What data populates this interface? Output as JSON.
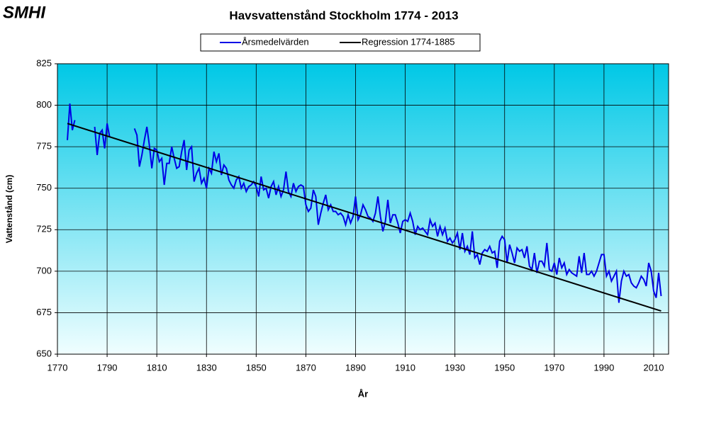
{
  "logo": "SMHI",
  "chart_data": {
    "type": "line",
    "title": "Havsvattenstånd  Stockholm 1774 - 2013",
    "x_label": "År",
    "y_label": "Vattenstånd (cm)",
    "xlim": [
      1770,
      2016
    ],
    "xticks": [
      1770,
      1790,
      1810,
      1830,
      1850,
      1870,
      1890,
      1910,
      1930,
      1950,
      1970,
      1990,
      2010
    ],
    "ylim": [
      650,
      825
    ],
    "yticks": [
      650,
      675,
      700,
      725,
      750,
      775,
      800,
      825
    ],
    "grid": true,
    "legend": "top",
    "series": [
      {
        "name": "Årsmedelvärden",
        "color": "#0000e6",
        "x": [
          1774,
          1775,
          1776,
          1777,
          1778,
          1779,
          1780,
          1781,
          1782,
          1783,
          1784,
          1785,
          1786,
          1787,
          1788,
          1789,
          1790,
          1791,
          1792,
          1793,
          1794,
          1795,
          1796,
          1797,
          1798,
          1799,
          1800,
          1801,
          1802,
          1803,
          1804,
          1805,
          1806,
          1807,
          1808,
          1809,
          1810,
          1811,
          1812,
          1813,
          1814,
          1815,
          1816,
          1817,
          1818,
          1819,
          1820,
          1821,
          1822,
          1823,
          1824,
          1825,
          1826,
          1827,
          1828,
          1829,
          1830,
          1831,
          1832,
          1833,
          1834,
          1835,
          1836,
          1837,
          1838,
          1839,
          1840,
          1841,
          1842,
          1843,
          1844,
          1845,
          1846,
          1847,
          1848,
          1849,
          1850,
          1851,
          1852,
          1853,
          1854,
          1855,
          1856,
          1857,
          1858,
          1859,
          1860,
          1861,
          1862,
          1863,
          1864,
          1865,
          1866,
          1867,
          1868,
          1869,
          1870,
          1871,
          1872,
          1873,
          1874,
          1875,
          1876,
          1877,
          1878,
          1879,
          1880,
          1881,
          1882,
          1883,
          1884,
          1885,
          1886,
          1887,
          1888,
          1889,
          1890,
          1891,
          1892,
          1893,
          1894,
          1895,
          1896,
          1897,
          1898,
          1899,
          1900,
          1901,
          1902,
          1903,
          1904,
          1905,
          1906,
          1907,
          1908,
          1909,
          1910,
          1911,
          1912,
          1913,
          1914,
          1915,
          1916,
          1917,
          1918,
          1919,
          1920,
          1921,
          1922,
          1923,
          1924,
          1925,
          1926,
          1927,
          1928,
          1929,
          1930,
          1931,
          1932,
          1933,
          1934,
          1935,
          1936,
          1937,
          1938,
          1939,
          1940,
          1941,
          1942,
          1943,
          1944,
          1945,
          1946,
          1947,
          1948,
          1949,
          1950,
          1951,
          1952,
          1953,
          1954,
          1955,
          1956,
          1957,
          1958,
          1959,
          1960,
          1961,
          1962,
          1963,
          1964,
          1965,
          1966,
          1967,
          1968,
          1969,
          1970,
          1971,
          1972,
          1973,
          1974,
          1975,
          1976,
          1977,
          1978,
          1979,
          1980,
          1981,
          1982,
          1983,
          1984,
          1985,
          1986,
          1987,
          1988,
          1989,
          1990,
          1991,
          1992,
          1993,
          1994,
          1995,
          1996,
          1997,
          1998,
          1999,
          2000,
          2001,
          2002,
          2003,
          2004,
          2005,
          2006,
          2007,
          2008,
          2009,
          2010,
          2011,
          2012,
          2013
        ],
        "values": [
          779,
          801,
          785,
          791,
          null,
          null,
          null,
          null,
          null,
          null,
          null,
          787,
          770,
          783,
          785,
          774,
          789,
          781,
          null,
          null,
          null,
          null,
          null,
          null,
          null,
          null,
          null,
          786,
          782,
          763,
          770,
          779,
          787,
          776,
          762,
          774,
          773,
          766,
          768,
          752,
          765,
          765,
          775,
          768,
          762,
          763,
          772,
          779,
          761,
          773,
          775,
          754,
          759,
          762,
          753,
          756,
          750,
          762,
          759,
          772,
          766,
          771,
          758,
          764,
          762,
          755,
          752,
          750,
          755,
          757,
          750,
          753,
          748,
          751,
          752,
          754,
          751,
          745,
          757,
          749,
          750,
          744,
          751,
          754,
          746,
          751,
          745,
          749,
          760,
          748,
          745,
          753,
          748,
          751,
          752,
          751,
          740,
          736,
          738,
          749,
          745,
          728,
          735,
          741,
          746,
          737,
          740,
          736,
          736,
          734,
          735,
          733,
          728,
          734,
          729,
          733,
          745,
          731,
          734,
          740,
          737,
          733,
          732,
          730,
          735,
          745,
          733,
          724,
          730,
          743,
          729,
          734,
          734,
          729,
          723,
          730,
          731,
          730,
          735,
          730,
          722,
          727,
          725,
          726,
          724,
          722,
          731,
          727,
          729,
          721,
          727,
          722,
          726,
          718,
          720,
          717,
          719,
          723,
          713,
          723,
          712,
          715,
          710,
          724,
          708,
          710,
          704,
          711,
          713,
          712,
          715,
          711,
          712,
          702,
          718,
          721,
          719,
          705,
          716,
          711,
          705,
          714,
          712,
          713,
          708,
          715,
          703,
          701,
          711,
          699,
          706,
          706,
          703,
          717,
          701,
          700,
          705,
          698,
          708,
          702,
          705,
          698,
          701,
          699,
          698,
          697,
          709,
          699,
          711,
          698,
          698,
          700,
          697,
          700,
          705,
          710,
          710,
          697,
          700,
          694,
          697,
          700,
          681,
          694,
          700,
          697,
          698,
          693,
          691,
          690,
          693,
          697,
          695,
          691,
          705,
          700,
          688,
          684,
          699,
          685
        ]
      },
      {
        "name": "Regression 1774-1885",
        "color": "#000000",
        "x": [
          1774,
          2013
        ],
        "values": [
          789,
          676
        ]
      }
    ]
  }
}
